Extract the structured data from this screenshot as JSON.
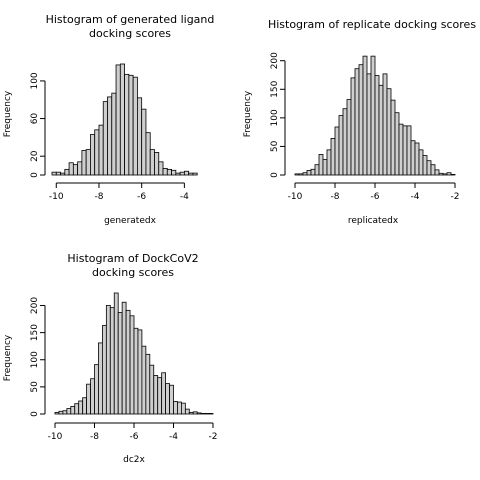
{
  "chart_data": [
    {
      "type": "bar",
      "title": [
        "Histogram of generated ligand",
        "docking scores"
      ],
      "xlabel": "generatedx",
      "ylabel": "Frequency",
      "bin_start": -10.2,
      "bin_width": 0.2,
      "values": [
        3,
        3,
        2,
        6,
        13,
        11,
        14,
        26,
        27,
        43,
        48,
        53,
        78,
        83,
        87,
        117,
        118,
        107,
        106,
        104,
        82,
        70,
        45,
        27,
        24,
        14,
        7,
        6,
        5,
        2,
        3,
        4,
        2,
        2
      ],
      "xlim": [
        -10.2,
        -2.8
      ],
      "ylim": [
        0,
        118
      ],
      "xticks": [
        -10,
        -8,
        -6,
        -4
      ],
      "yticks": [
        0,
        20,
        60,
        100
      ]
    },
    {
      "type": "bar",
      "title": [
        "Histogram of replicate docking scores"
      ],
      "xlabel": "replicatedx",
      "ylabel": "Frequency",
      "bin_start": -10.0,
      "bin_width": 0.2,
      "values": [
        2,
        2,
        4,
        8,
        10,
        18,
        36,
        27,
        44,
        64,
        84,
        104,
        116,
        132,
        170,
        186,
        193,
        208,
        177,
        208,
        174,
        157,
        177,
        151,
        131,
        109,
        89,
        86,
        86,
        60,
        56,
        44,
        34,
        25,
        18,
        9,
        3,
        2,
        4,
        1
      ],
      "xlim": [
        -10.0,
        -2.0
      ],
      "ylim": [
        0,
        210
      ],
      "xticks": [
        -10,
        -8,
        -6,
        -4,
        -2
      ],
      "yticks": [
        0,
        50,
        100,
        150,
        200
      ]
    },
    {
      "type": "bar",
      "title": [
        "Histogram of DockCoV2",
        "docking scores"
      ],
      "xlabel": "dc2x",
      "ylabel": "Frequency",
      "bin_start": -10.0,
      "bin_width": 0.2,
      "values": [
        3,
        5,
        6,
        10,
        14,
        19,
        24,
        30,
        55,
        65,
        91,
        131,
        163,
        200,
        196,
        223,
        187,
        206,
        191,
        181,
        158,
        155,
        125,
        110,
        90,
        71,
        67,
        76,
        56,
        53,
        23,
        22,
        20,
        9,
        3,
        4,
        2,
        1,
        1,
        1
      ],
      "xlim": [
        -10.0,
        -2.0
      ],
      "ylim": [
        0,
        223
      ],
      "xticks": [
        -10,
        -8,
        -6,
        -4,
        -2
      ],
      "yticks": [
        0,
        50,
        100,
        150,
        200
      ]
    }
  ]
}
